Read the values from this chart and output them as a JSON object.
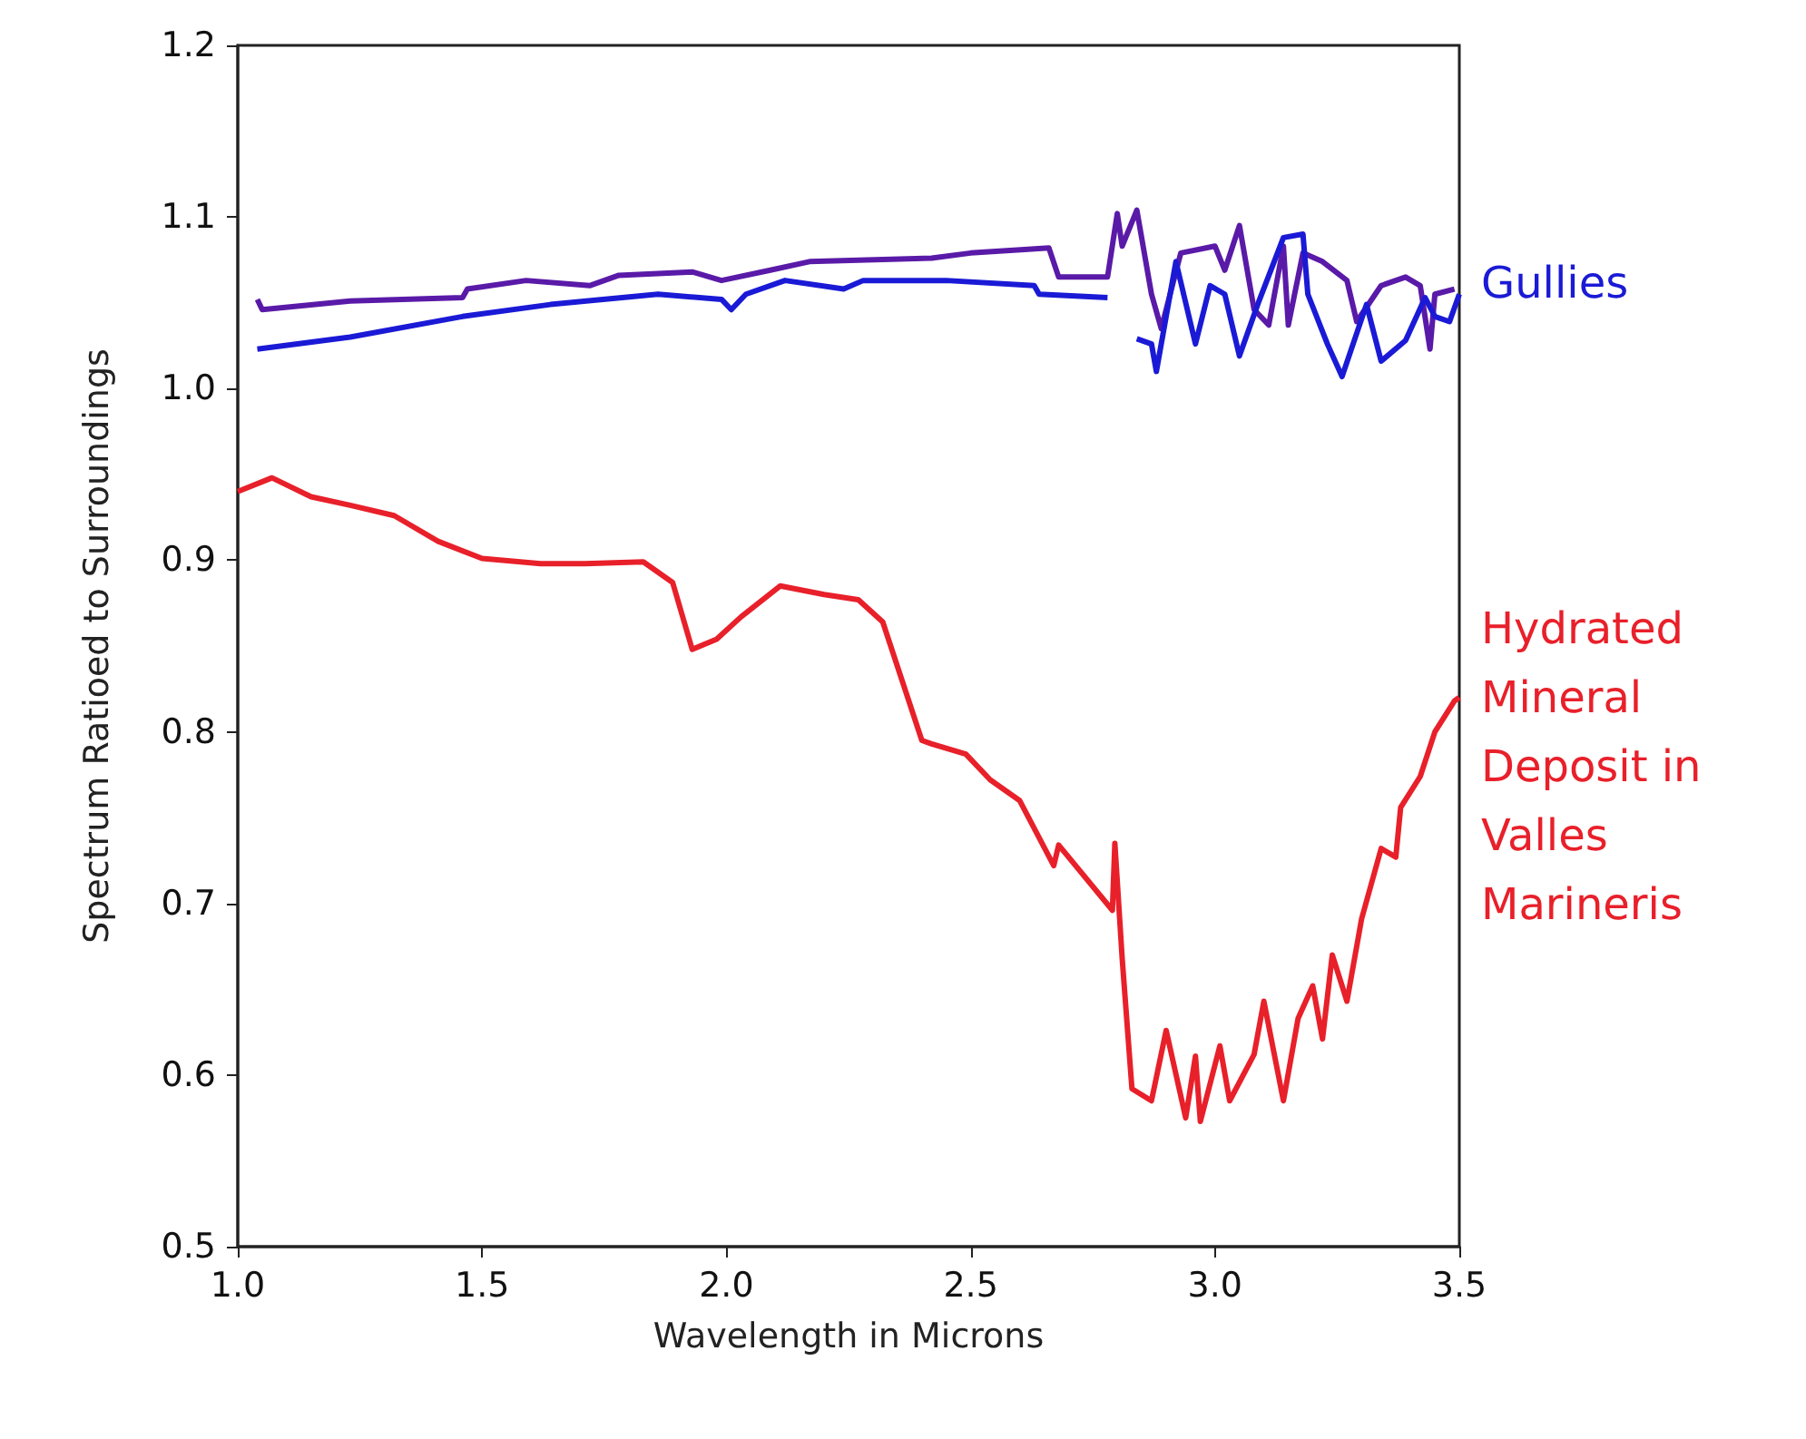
{
  "chart_data": {
    "type": "line",
    "xlabel": "Wavelength in Microns",
    "ylabel": "Spectrum Ratioed to Surroundings",
    "xlim": [
      1.0,
      3.5
    ],
    "ylim": [
      0.5,
      1.2
    ],
    "xticks": [
      {
        "value": 1,
        "label": "1.0"
      },
      1.5,
      {
        "value": 2,
        "label": "2.0"
      },
      2.5,
      {
        "value": 3,
        "label": "3.0"
      },
      3.5
    ],
    "yticks": [
      0.5,
      0.6,
      0.7,
      0.8,
      0.9,
      {
        "value": 1,
        "label": "1.0"
      },
      1.1,
      1.2
    ],
    "grid": false,
    "legend": false,
    "marker": "none",
    "line_style": "solid",
    "series": [
      {
        "color": "#5a1aa8",
        "x": [
          1.04,
          1.05,
          1.23,
          1.46,
          1.47,
          1.59,
          1.72,
          1.78,
          1.93,
          1.99,
          2.09,
          2.17,
          2.42,
          2.5,
          2.61,
          2.66,
          2.68,
          2.78,
          2.8,
          2.81,
          2.84,
          2.87,
          2.89,
          2.93,
          3.0,
          3.02,
          3.05,
          3.08,
          3.11,
          3.14,
          3.15,
          3.18,
          3.22,
          3.27,
          3.29,
          3.34,
          3.39,
          3.42,
          3.44,
          3.45,
          3.49
        ],
        "values": [
          1.052,
          1.046,
          1.051,
          1.053,
          1.058,
          1.063,
          1.06,
          1.066,
          1.068,
          1.063,
          1.069,
          1.074,
          1.076,
          1.079,
          1.081,
          1.082,
          1.065,
          1.065,
          1.102,
          1.083,
          1.104,
          1.055,
          1.035,
          1.079,
          1.083,
          1.069,
          1.095,
          1.046,
          1.037,
          1.083,
          1.037,
          1.079,
          1.074,
          1.063,
          1.039,
          1.06,
          1.065,
          1.06,
          1.023,
          1.055,
          1.058
        ]
      },
      {
        "name": "Gullies",
        "color": "#1a1ad6",
        "x": [
          1.04,
          1.23,
          1.46,
          1.64,
          1.86,
          1.99,
          2.01,
          2.04,
          2.12,
          2.24,
          2.28,
          2.45,
          2.63,
          2.64,
          2.78,
          2.81,
          2.84,
          2.87,
          2.88,
          2.92,
          2.96,
          2.99,
          3.02,
          3.05,
          3.09,
          3.14,
          3.18,
          3.19,
          3.23,
          3.26,
          3.31,
          3.34,
          3.39,
          3.43,
          3.45,
          3.48,
          3.5
        ],
        "values": [
          1.023,
          1.03,
          1.042,
          1.049,
          1.055,
          1.052,
          1.046,
          1.055,
          1.063,
          1.058,
          1.063,
          1.063,
          1.06,
          1.055,
          1.053,
          null,
          1.029,
          1.026,
          1.01,
          1.074,
          1.026,
          1.06,
          1.055,
          1.019,
          1.051,
          1.088,
          1.09,
          1.055,
          1.026,
          1.007,
          1.049,
          1.016,
          1.028,
          1.053,
          1.042,
          1.039,
          1.055
        ]
      },
      {
        "name": "Hydrated Mineral Deposit in Valles Marineris",
        "color": "#e8202a",
        "x": [
          1.0,
          1.07,
          1.15,
          1.23,
          1.32,
          1.41,
          1.5,
          1.62,
          1.71,
          1.83,
          1.89,
          1.93,
          1.98,
          2.03,
          2.11,
          2.2,
          2.27,
          2.32,
          2.4,
          2.42,
          2.49,
          2.54,
          2.6,
          2.67,
          2.68,
          2.79,
          2.795,
          2.81,
          2.83,
          2.87,
          2.9,
          2.94,
          2.96,
          2.97,
          3.01,
          3.03,
          3.08,
          3.1,
          3.14,
          3.17,
          3.2,
          3.22,
          3.24,
          3.27,
          3.3,
          3.34,
          3.37,
          3.38,
          3.42,
          3.45,
          3.49,
          3.5
        ],
        "values": [
          0.94,
          0.948,
          0.937,
          0.932,
          0.926,
          0.911,
          0.901,
          0.898,
          0.898,
          0.899,
          0.887,
          0.848,
          0.854,
          0.867,
          0.885,
          0.88,
          0.877,
          0.864,
          0.795,
          0.793,
          0.787,
          0.772,
          0.76,
          0.722,
          0.734,
          0.696,
          0.735,
          0.668,
          0.592,
          0.585,
          0.626,
          0.575,
          0.611,
          0.573,
          0.617,
          0.585,
          0.612,
          0.643,
          0.585,
          0.633,
          0.652,
          0.621,
          0.67,
          0.643,
          0.691,
          0.732,
          0.727,
          0.756,
          0.774,
          0.8,
          0.818,
          0.82
        ]
      }
    ]
  }
}
